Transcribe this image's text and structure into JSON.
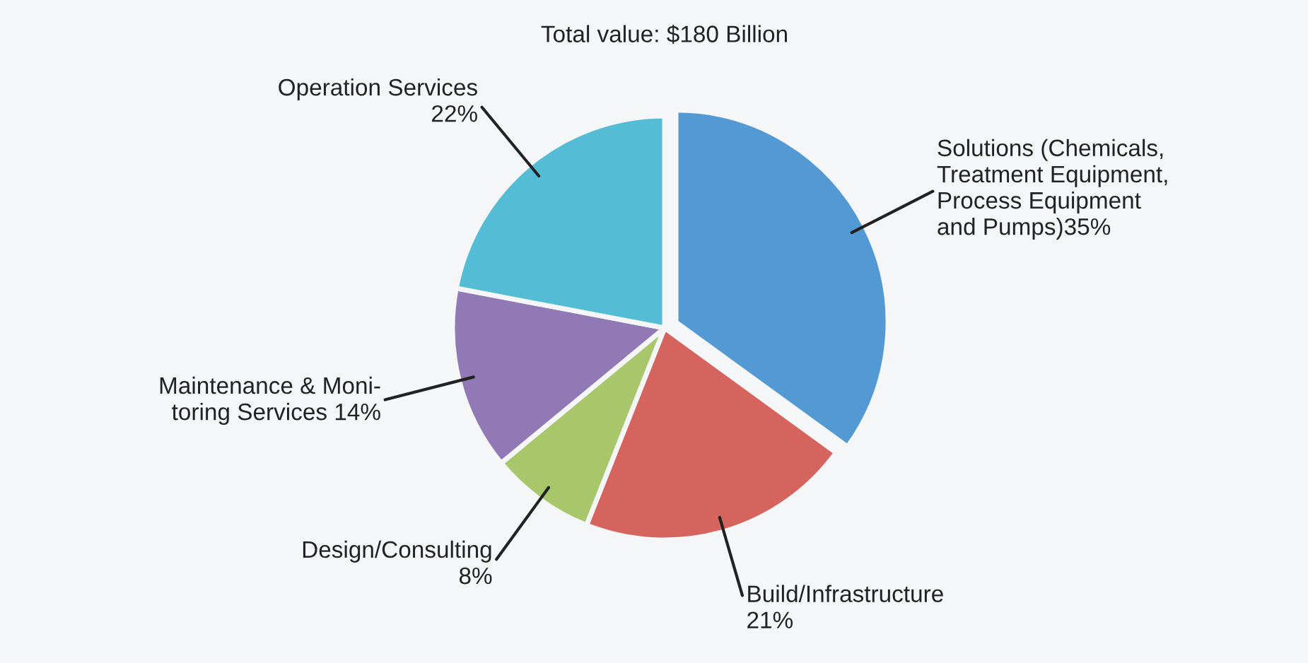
{
  "chart_data": {
    "type": "pie",
    "title": "Total value: $180 Billion",
    "categories": [
      "Solutions (Chemicals,\nTreatment Equipment,\nProcess Equipment\nand Pumps)35%",
      "Build/Infrastructure\n21%",
      "Design/Consulting\n8%",
      "Maintenance & Moni-\ntoring Services 14%",
      "Operation Services\n22%"
    ],
    "values": [
      35,
      21,
      8,
      14,
      22
    ],
    "colors": [
      "#5399d3",
      "#d4645d",
      "#a8c66a",
      "#9079b4",
      "#55bcd5"
    ]
  }
}
